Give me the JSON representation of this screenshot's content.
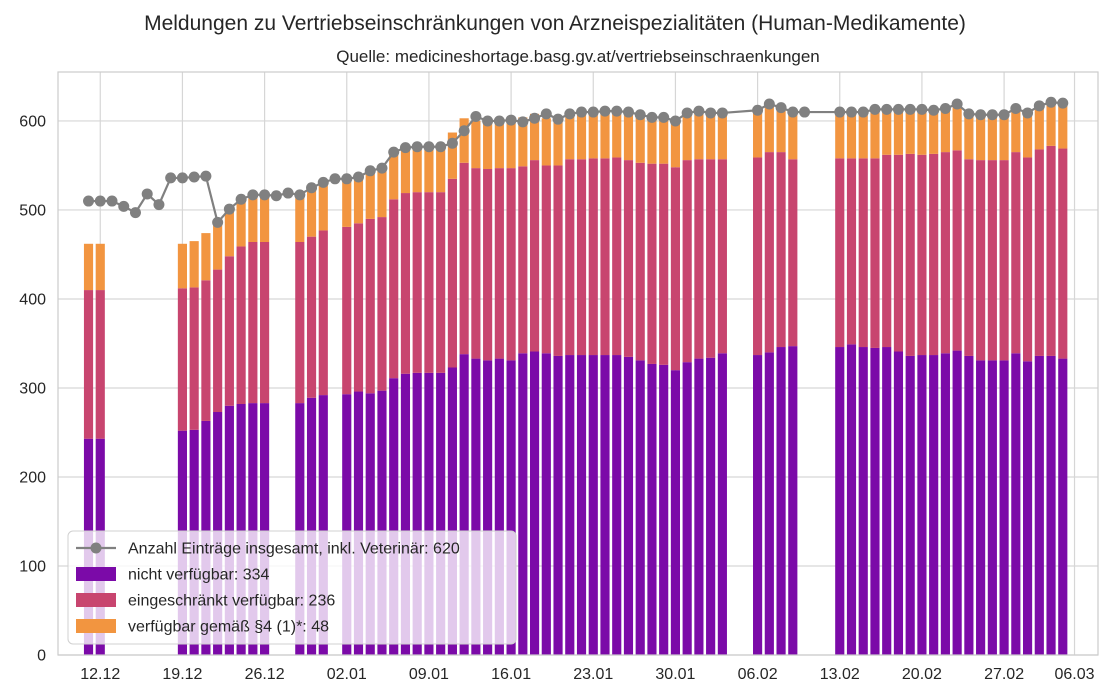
{
  "chart_data": {
    "type": "bar",
    "stacked": true,
    "title": "Meldungen zu Vertriebseinschränkungen von Arzneispezialitäten (Human-Medikamente)",
    "subtitle": "Quelle: medicineshortage.basg.gv.at/vertriebseinschraenkungen",
    "xlabel": "",
    "ylabel": "",
    "ylim": [
      0,
      655
    ],
    "yticks": [
      0,
      100,
      200,
      300,
      400,
      500,
      600
    ],
    "x_is_day_offset_from": "10.12",
    "xlim": [
      -1.6,
      87.0
    ],
    "xticks": [
      {
        "x": 2,
        "label": "12.12"
      },
      {
        "x": 9,
        "label": "19.12"
      },
      {
        "x": 16,
        "label": "26.12"
      },
      {
        "x": 23,
        "label": "02.01"
      },
      {
        "x": 30,
        "label": "09.01"
      },
      {
        "x": 37,
        "label": "16.01"
      },
      {
        "x": 44,
        "label": "23.01"
      },
      {
        "x": 51,
        "label": "30.01"
      },
      {
        "x": 58,
        "label": "06.02"
      },
      {
        "x": 65,
        "label": "13.02"
      },
      {
        "x": 72,
        "label": "20.02"
      },
      {
        "x": 79,
        "label": "27.02"
      },
      {
        "x": 85,
        "label": "06.03"
      }
    ],
    "grid": true,
    "legend_position": "lower-left",
    "colors": {
      "line": "#808080",
      "nicht": "#7b0aa8",
      "eingeschraenkt": "#c8456f",
      "verfuegbar": "#f29540"
    },
    "legend": [
      {
        "key": "line",
        "label": "Anzahl Einträge insgesamt, inkl. Veterinär: 620"
      },
      {
        "key": "nicht",
        "label": "nicht verfügbar: 334"
      },
      {
        "key": "eingeschraenkt",
        "label": "eingeschränkt verfügbar: 236"
      },
      {
        "key": "verfuegbar",
        "label": "verfügbar gemäß §4 (1)*: 48"
      }
    ],
    "bars": {
      "x": [
        1,
        2,
        9,
        10,
        11,
        12,
        13,
        14,
        15,
        16,
        19,
        20,
        21,
        23,
        24,
        25,
        26,
        27,
        28,
        29,
        30,
        31,
        32,
        33,
        34,
        35,
        36,
        37,
        38,
        39,
        40,
        41,
        42,
        43,
        44,
        45,
        46,
        47,
        48,
        49,
        50,
        51,
        52,
        53,
        54,
        55,
        58,
        59,
        60,
        61,
        65,
        66,
        67,
        68,
        69,
        70,
        71,
        72,
        73,
        74,
        75,
        76,
        77,
        78,
        79,
        80,
        81,
        82,
        83,
        84
      ],
      "nicht": [
        243,
        243,
        252,
        253,
        263,
        273,
        280,
        282,
        283,
        283,
        283,
        289,
        292,
        293,
        296,
        294,
        297,
        311,
        316,
        317,
        317,
        317,
        323,
        338,
        333,
        331,
        333,
        331,
        339,
        341,
        339,
        336,
        337,
        337,
        337,
        337,
        337,
        335,
        331,
        327,
        326,
        320,
        329,
        333,
        334,
        339,
        337,
        340,
        346,
        347,
        346,
        349,
        346,
        345,
        346,
        341,
        336,
        337,
        337,
        339,
        342,
        336,
        331,
        331,
        331,
        339,
        330,
        336,
        336,
        333
      ],
      "eingeschraenkt": [
        167,
        167,
        160,
        160,
        158,
        160,
        168,
        177,
        181,
        181,
        181,
        181,
        185,
        188,
        189,
        196,
        195,
        201,
        203,
        203,
        203,
        203,
        212,
        215,
        214,
        215,
        214,
        216,
        210,
        215,
        211,
        214,
        220,
        220,
        221,
        221,
        222,
        221,
        222,
        225,
        226,
        228,
        227,
        224,
        223,
        218,
        222,
        225,
        219,
        210,
        212,
        209,
        212,
        213,
        216,
        221,
        227,
        225,
        226,
        226,
        225,
        221,
        225,
        225,
        225,
        226,
        229,
        232,
        236,
        236
      ],
      "verfuegbar": [
        52,
        52,
        50,
        52,
        53,
        50,
        53,
        52,
        52,
        52,
        52,
        52,
        52,
        52,
        52,
        52,
        52,
        52,
        52,
        52,
        52,
        52,
        52,
        50,
        53,
        54,
        53,
        53,
        55,
        52,
        53,
        54,
        52,
        52,
        52,
        52,
        52,
        52,
        55,
        53,
        52,
        53,
        50,
        53,
        52,
        53,
        53,
        52,
        51,
        52,
        52,
        52,
        52,
        52,
        52,
        52,
        52,
        52,
        52,
        50,
        52,
        51,
        51,
        51,
        51,
        50,
        51,
        50,
        48,
        48
      ]
    },
    "line": {
      "x": [
        1,
        2,
        3,
        4,
        5,
        6,
        7,
        8,
        9,
        10,
        11,
        12,
        13,
        14,
        15,
        16,
        17,
        18,
        19,
        20,
        21,
        22,
        23,
        24,
        25,
        26,
        27,
        28,
        29,
        30,
        31,
        32,
        33,
        34,
        35,
        36,
        37,
        38,
        39,
        40,
        41,
        42,
        43,
        44,
        45,
        46,
        47,
        48,
        49,
        50,
        51,
        52,
        53,
        54,
        55,
        58,
        59,
        60,
        61,
        62,
        65,
        66,
        67,
        68,
        69,
        70,
        71,
        72,
        73,
        74,
        75,
        76,
        77,
        78,
        79,
        80,
        81,
        82,
        83,
        84
      ],
      "y": [
        510,
        510,
        510,
        504,
        497,
        518,
        506,
        536,
        536,
        537,
        538,
        486,
        501,
        512,
        517,
        517,
        516,
        519,
        517,
        525,
        531,
        535,
        535,
        537,
        544,
        547,
        565,
        570,
        571,
        571,
        571,
        575,
        589,
        605,
        600,
        600,
        601,
        599,
        603,
        608,
        602,
        608,
        610,
        610,
        611,
        611,
        610,
        607,
        604,
        604,
        600,
        609,
        611,
        609,
        609,
        612,
        619,
        615,
        610,
        610,
        610,
        610,
        610,
        613,
        613,
        613,
        613,
        613,
        612,
        614,
        619,
        608,
        607,
        607,
        607,
        614,
        609,
        617,
        621,
        620
      ]
    }
  }
}
